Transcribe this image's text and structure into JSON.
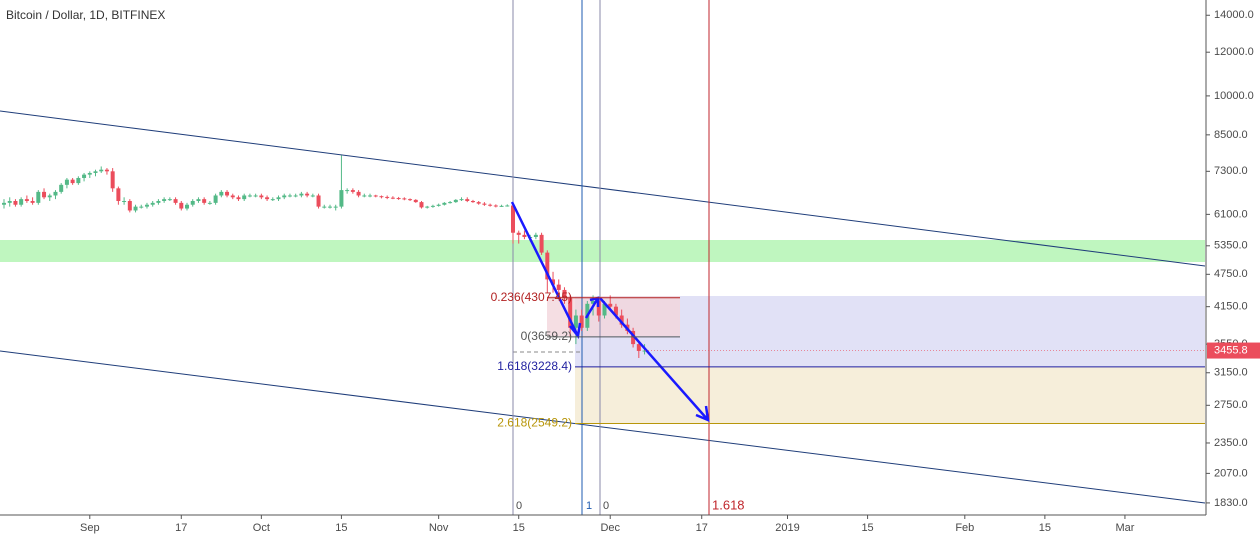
{
  "chart_data": {
    "type": "candlestick",
    "title": "Bitcoin / Dollar, 1D, BITFINEX",
    "log_scale": true,
    "up_color": "#53b987",
    "down_color": "#eb4d5c",
    "ylim": [
      1740,
      14920
    ],
    "yticks": [
      {
        "value": 14000,
        "label": "14000.0"
      },
      {
        "value": 12000,
        "label": "12000.0"
      },
      {
        "value": 10000,
        "label": "10000.0"
      },
      {
        "value": 8500,
        "label": "8500.0"
      },
      {
        "value": 7300,
        "label": "7300.0"
      },
      {
        "value": 6100,
        "label": "6100.0"
      },
      {
        "value": 5350,
        "label": "5350.0"
      },
      {
        "value": 4750,
        "label": "4750.0"
      },
      {
        "value": 4150,
        "label": "4150.0"
      },
      {
        "value": 3550,
        "label": "3550.0"
      },
      {
        "value": 3150,
        "label": "3150.0"
      },
      {
        "value": 2750,
        "label": "2750.0"
      },
      {
        "value": 2350,
        "label": "2350.0"
      },
      {
        "value": 2070,
        "label": "2070.0"
      },
      {
        "value": 1830,
        "label": "1830.0"
      }
    ],
    "xlim": [
      -0.7,
      210
    ],
    "xticks": [
      {
        "value": 15,
        "label": "Sep"
      },
      {
        "value": 31,
        "label": "17"
      },
      {
        "value": 45,
        "label": "Oct"
      },
      {
        "value": 59,
        "label": "15"
      },
      {
        "value": 76,
        "label": "Nov"
      },
      {
        "value": 90,
        "label": "15"
      },
      {
        "value": 106,
        "label": "Dec"
      },
      {
        "value": 122,
        "label": "17"
      },
      {
        "value": 137,
        "label": "2019"
      },
      {
        "value": 151,
        "label": "15"
      },
      {
        "value": 168,
        "label": "Feb"
      },
      {
        "value": 182,
        "label": "15"
      },
      {
        "value": 196,
        "label": "Mar"
      }
    ],
    "open": [
      6350,
      6400,
      6450,
      6350,
      6500,
      6450,
      6400,
      6700,
      6550,
      6600,
      6700,
      6900,
      7050,
      6950,
      7100,
      7200,
      7250,
      7300,
      7350,
      7300,
      6800,
      6450,
      6450,
      6200,
      6300,
      6300,
      6350,
      6400,
      6450,
      6500,
      6500,
      6400,
      6250,
      6350,
      6450,
      6500,
      6400,
      6400,
      6600,
      6700,
      6600,
      6550,
      6500,
      6600,
      6600,
      6600,
      6550,
      6500,
      6500,
      6550,
      6600,
      6600,
      6600,
      6650,
      6600,
      6600,
      6300,
      6300,
      6300,
      6300,
      6750,
      6750,
      6700,
      6600,
      6600,
      6600,
      6580,
      6560,
      6540,
      6530,
      6520,
      6500,
      6480,
      6420,
      6280,
      6300,
      6320,
      6350,
      6400,
      6420,
      6480,
      6500,
      6450,
      6420,
      6380,
      6350,
      6330,
      6310,
      6320,
      6330,
      5650,
      5600,
      5550,
      5550,
      5600,
      5200,
      4650,
      4550,
      4450,
      4300,
      3800,
      4000,
      3800,
      4200,
      4250,
      4000,
      4200,
      4150,
      4000,
      3850,
      3750,
      3550,
      3450
    ],
    "high": [
      6500,
      6550,
      6500,
      6550,
      6600,
      6550,
      6750,
      6800,
      6650,
      6750,
      6950,
      7100,
      7100,
      7150,
      7250,
      7300,
      7350,
      7450,
      7400,
      7400,
      6850,
      6550,
      6500,
      6350,
      6350,
      6400,
      6450,
      6500,
      6550,
      6550,
      6550,
      6450,
      6400,
      6500,
      6550,
      6550,
      6450,
      6650,
      6750,
      6750,
      6650,
      6600,
      6650,
      6650,
      6650,
      6650,
      6600,
      6550,
      6600,
      6650,
      6650,
      6650,
      6700,
      6700,
      6650,
      6650,
      6350,
      6350,
      6350,
      7800,
      6800,
      6800,
      6750,
      6650,
      6650,
      6620,
      6600,
      6600,
      6580,
      6560,
      6550,
      6520,
      6500,
      6450,
      6320,
      6350,
      6380,
      6420,
      6450,
      6500,
      6550,
      6550,
      6480,
      6450,
      6420,
      6380,
      6360,
      6350,
      6360,
      6380,
      5700,
      5700,
      5600,
      5650,
      5650,
      5250,
      4800,
      4650,
      4500,
      4350,
      4100,
      4100,
      4250,
      4350,
      4300,
      4250,
      4350,
      4200,
      4100,
      3950,
      3800,
      3600,
      3550
    ],
    "low": [
      6250,
      6300,
      6300,
      6300,
      6400,
      6350,
      6350,
      6500,
      6450,
      6500,
      6650,
      6800,
      6900,
      6900,
      7000,
      7100,
      7150,
      7250,
      7200,
      6700,
      6350,
      6350,
      6150,
      6150,
      6250,
      6250,
      6300,
      6350,
      6400,
      6450,
      6350,
      6200,
      6200,
      6300,
      6400,
      6350,
      6350,
      6350,
      6550,
      6550,
      6500,
      6450,
      6450,
      6550,
      6550,
      6500,
      6450,
      6450,
      6450,
      6500,
      6550,
      6550,
      6550,
      6550,
      6550,
      6250,
      6250,
      6250,
      6200,
      6250,
      6650,
      6650,
      6550,
      6550,
      6550,
      6550,
      6520,
      6500,
      6500,
      6480,
      6470,
      6450,
      6400,
      6250,
      6250,
      6270,
      6300,
      6330,
      6380,
      6400,
      6450,
      6420,
      6400,
      6350,
      6320,
      6300,
      6280,
      6290,
      6300,
      5400,
      5400,
      5500,
      5450,
      5500,
      5150,
      4400,
      4400,
      4300,
      4200,
      3650,
      3550,
      3750,
      3750,
      4000,
      3900,
      3950,
      4100,
      3950,
      3800,
      3700,
      3500,
      3350,
      3400
    ],
    "close": [
      6400,
      6450,
      6350,
      6500,
      6450,
      6400,
      6700,
      6550,
      6600,
      6700,
      6900,
      7050,
      6950,
      7100,
      7200,
      7250,
      7300,
      7350,
      7300,
      6800,
      6450,
      6450,
      6200,
      6300,
      6300,
      6350,
      6400,
      6450,
      6500,
      6500,
      6400,
      6250,
      6350,
      6450,
      6500,
      6400,
      6400,
      6600,
      6700,
      6600,
      6550,
      6500,
      6600,
      6600,
      6600,
      6550,
      6500,
      6500,
      6550,
      6600,
      6600,
      6600,
      6650,
      6600,
      6600,
      6300,
      6300,
      6300,
      6300,
      6750,
      6750,
      6700,
      6600,
      6600,
      6600,
      6580,
      6560,
      6540,
      6530,
      6520,
      6500,
      6480,
      6420,
      6280,
      6300,
      6320,
      6350,
      6400,
      6420,
      6480,
      6500,
      6450,
      6420,
      6380,
      6350,
      6330,
      6310,
      6320,
      6330,
      5650,
      5600,
      5550,
      5550,
      5600,
      5200,
      4650,
      4550,
      4450,
      4300,
      3800,
      4000,
      3800,
      4200,
      4250,
      4000,
      4200,
      4150,
      4000,
      3850,
      3750,
      3550,
      3450,
      3455.8
    ],
    "last_price_label": "3455.8",
    "fib_levels": [
      {
        "label": "0.236(4307.45)",
        "price": 4307.45
      },
      {
        "label": "0(3659.2)",
        "price": 3659.2
      },
      {
        "label": "1.618(3228.4)",
        "price": 3228.4
      },
      {
        "label": "2.618(2549.2)",
        "price": 2549.2
      }
    ],
    "vline_labels": [
      "0",
      "1",
      "0",
      "1.618"
    ]
  }
}
